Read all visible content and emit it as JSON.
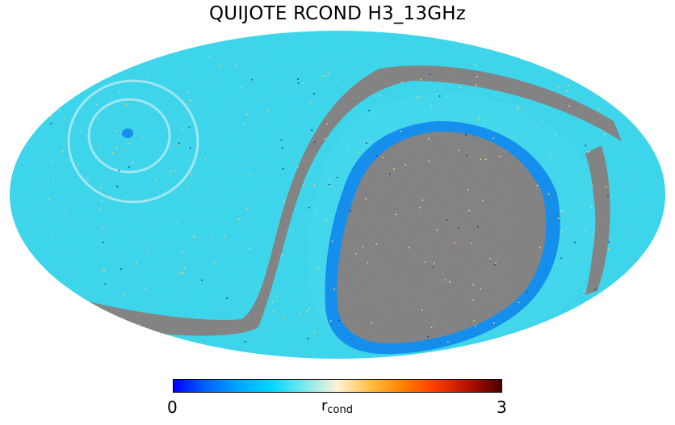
{
  "title": "QUIJOTE RCOND H3_13GHz",
  "colorbar": {
    "min_label": "0",
    "max_label": "3",
    "label_main": "r",
    "label_sub": "cond",
    "stops": [
      "#0000ff",
      "#0066ff",
      "#00a8ff",
      "#00d8ff",
      "#7ee8ec",
      "#fff2d6",
      "#ffbf40",
      "#ff8000",
      "#ff3a00",
      "#b31000",
      "#4d0000"
    ]
  },
  "map": {
    "projection": "Mollweide",
    "colors": {
      "background_field": "#36d7ee",
      "ring_field": "#3bd9ef",
      "masked": "#808080",
      "deep_blue_ring": "#0b8cf0",
      "speckle_warm": "#ffd070",
      "speckle_dark": "#1a3a8a"
    }
  }
}
